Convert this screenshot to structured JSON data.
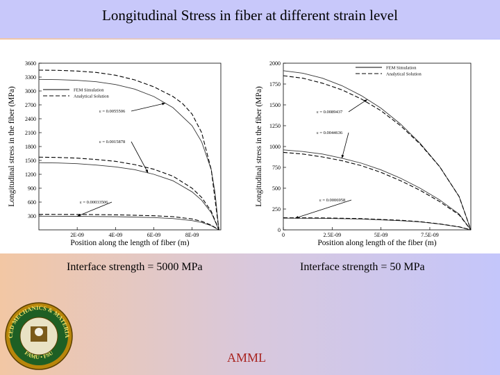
{
  "title": "Longitudinal Stress in fiber at different strain level",
  "captions": {
    "left": "Interface strength = 5000 MPa",
    "right": "Interface strength = 50 MPa"
  },
  "footer": {
    "lab_name": "AMML"
  },
  "logo": {
    "ring_top": "ADVANCED MECHANICS & MATERIALS LAB",
    "ring_bottom": "FAMU • FSU",
    "colors": {
      "ring": "#b8860b",
      "inner": "#1e5f24",
      "text": "#f4e36b"
    }
  },
  "colors": {
    "analytical_dash": "#000000",
    "fem_line": "#333333",
    "title_band": "#c8c8fa"
  },
  "chart_data": [
    {
      "type": "line",
      "title": "",
      "xlabel": "Position along the length of fiber (m)",
      "ylabel": "Longitudinal stress in the fiber (MPa)",
      "xlim": [
        0,
        9.5e-09
      ],
      "ylim": [
        0,
        3600
      ],
      "xticks": [
        2e-09,
        4e-09,
        6e-09,
        8e-09
      ],
      "xtick_labels": [
        "2E-09",
        "4E-09",
        "6E-09",
        "8E-09"
      ],
      "yticks": [
        300,
        600,
        900,
        1200,
        1500,
        1800,
        2100,
        2400,
        2700,
        3000,
        3300,
        3600
      ],
      "ytick_labels": [
        "300",
        "600",
        "900",
        "1200",
        "1500",
        "1800",
        "2100",
        "2400",
        "2700",
        "3000",
        "3300",
        "3600"
      ],
      "legend": [
        "FEM Simulation",
        "Analytical Solution"
      ],
      "legend_position": "top-left",
      "annotations": [
        "ε = 0.0055506",
        "ε = 0.0015878",
        "ε = 0.00033506"
      ],
      "series": [
        {
          "name": "FEM Simulation",
          "style": "solid",
          "strain": 0.0055506,
          "x": [
            0,
            1e-09,
            2e-09,
            3e-09,
            4e-09,
            5e-09,
            6e-09,
            7e-09,
            8e-09,
            8.5e-09,
            9e-09,
            9.2e-09,
            9.4e-09
          ],
          "y": [
            3250,
            3245,
            3230,
            3200,
            3140,
            3040,
            2880,
            2640,
            2250,
            1900,
            1300,
            800,
            0
          ]
        },
        {
          "name": "Analytical Solution",
          "style": "dashed",
          "strain": 0.0055506,
          "x": [
            0,
            1e-09,
            2e-09,
            3e-09,
            4e-09,
            5e-09,
            6e-09,
            7e-09,
            7.5e-09,
            8e-09,
            8.5e-09,
            9e-09,
            9.4e-09
          ],
          "y": [
            3450,
            3445,
            3430,
            3400,
            3340,
            3240,
            3090,
            2880,
            2730,
            2500,
            2100,
            1300,
            0
          ]
        },
        {
          "name": "FEM Simulation",
          "style": "solid",
          "strain": 0.0015878,
          "x": [
            0,
            1e-09,
            2e-09,
            3e-09,
            4e-09,
            5e-09,
            6e-09,
            7e-09,
            8e-09,
            8.5e-09,
            9e-09,
            9.4e-09
          ],
          "y": [
            1450,
            1445,
            1430,
            1400,
            1360,
            1300,
            1200,
            1060,
            820,
            640,
            370,
            0
          ]
        },
        {
          "name": "Analytical Solution",
          "style": "dashed",
          "strain": 0.0015878,
          "x": [
            0,
            1e-09,
            2e-09,
            3e-09,
            4e-09,
            5e-09,
            6e-09,
            7e-09,
            8e-09,
            8.5e-09,
            9e-09,
            9.4e-09
          ],
          "y": [
            1570,
            1565,
            1550,
            1520,
            1480,
            1410,
            1310,
            1160,
            900,
            700,
            400,
            0
          ]
        },
        {
          "name": "FEM Simulation",
          "style": "solid",
          "strain": 0.00033506,
          "x": [
            0,
            2e-09,
            4e-09,
            6e-09,
            7e-09,
            8e-09,
            8.5e-09,
            9e-09,
            9.4e-09
          ],
          "y": [
            295,
            293,
            285,
            265,
            245,
            200,
            160,
            90,
            0
          ]
        },
        {
          "name": "Analytical Solution",
          "style": "dashed",
          "strain": 0.00033506,
          "x": [
            0,
            2e-09,
            4e-09,
            6e-09,
            7e-09,
            8e-09,
            8.5e-09,
            9e-09,
            9.4e-09
          ],
          "y": [
            335,
            333,
            325,
            305,
            285,
            235,
            185,
            100,
            0
          ]
        }
      ]
    },
    {
      "type": "line",
      "title": "",
      "xlabel": "Position along length of the fiber (m)",
      "ylabel": "Longitudinal stress in the fiber (MPa)",
      "xlim": [
        0,
        9.6e-09
      ],
      "ylim": [
        0,
        2000
      ],
      "xticks": [
        0,
        2.5e-09,
        5e-09,
        7.5e-09
      ],
      "xtick_labels": [
        "0",
        "2.5E-09",
        "5E-09",
        "7.5E-09"
      ],
      "yticks": [
        0,
        250,
        500,
        750,
        1000,
        1250,
        1500,
        1750,
        2000
      ],
      "ytick_labels": [
        "0",
        "250",
        "500",
        "750",
        "1000",
        "1250",
        "1500",
        "1750",
        "2000"
      ],
      "legend": [
        "FEM Simulation",
        "Analytical Solution"
      ],
      "legend_position": "top-right",
      "annotations": [
        "ε = 0.0089437",
        "ε = 0.0044636",
        "ε = 0.0006958"
      ],
      "series": [
        {
          "name": "FEM Simulation",
          "style": "solid",
          "strain": 0.0089437,
          "x": [
            0,
            1e-09,
            2e-09,
            3e-09,
            4e-09,
            5e-09,
            6e-09,
            7e-09,
            8e-09,
            9e-09,
            9.6e-09
          ],
          "y": [
            1910,
            1880,
            1820,
            1730,
            1610,
            1460,
            1270,
            1040,
            760,
            400,
            0
          ]
        },
        {
          "name": "Analytical Solution",
          "style": "dashed",
          "strain": 0.0089437,
          "x": [
            0,
            1e-09,
            2e-09,
            3e-09,
            4e-09,
            5e-09,
            6e-09,
            7e-09,
            8e-09,
            9e-09,
            9.6e-09
          ],
          "y": [
            1850,
            1820,
            1760,
            1680,
            1570,
            1430,
            1250,
            1030,
            760,
            400,
            0
          ]
        },
        {
          "name": "FEM Simulation",
          "style": "solid",
          "strain": 0.0044636,
          "x": [
            0,
            1e-09,
            2e-09,
            3e-09,
            4e-09,
            5e-09,
            6e-09,
            7e-09,
            8e-09,
            9e-09,
            9.6e-09
          ],
          "y": [
            960,
            940,
            910,
            860,
            800,
            720,
            620,
            500,
            360,
            190,
            0
          ]
        },
        {
          "name": "Analytical Solution",
          "style": "dashed",
          "strain": 0.0044636,
          "x": [
            0,
            1e-09,
            2e-09,
            3e-09,
            4e-09,
            5e-09,
            6e-09,
            7e-09,
            8e-09,
            9e-09,
            9.6e-09
          ],
          "y": [
            930,
            910,
            875,
            830,
            770,
            690,
            590,
            475,
            340,
            180,
            0
          ]
        },
        {
          "name": "FEM Simulation",
          "style": "solid",
          "strain": 0.0006958,
          "x": [
            0,
            2e-09,
            4e-09,
            6e-09,
            7e-09,
            8e-09,
            9e-09,
            9.6e-09
          ],
          "y": [
            140,
            138,
            130,
            110,
            95,
            70,
            35,
            0
          ]
        },
        {
          "name": "Analytical Solution",
          "style": "dashed",
          "strain": 0.0006958,
          "x": [
            0,
            2e-09,
            4e-09,
            6e-09,
            7e-09,
            8e-09,
            9e-09,
            9.6e-09
          ],
          "y": [
            145,
            143,
            135,
            115,
            98,
            72,
            37,
            0
          ]
        }
      ]
    }
  ]
}
